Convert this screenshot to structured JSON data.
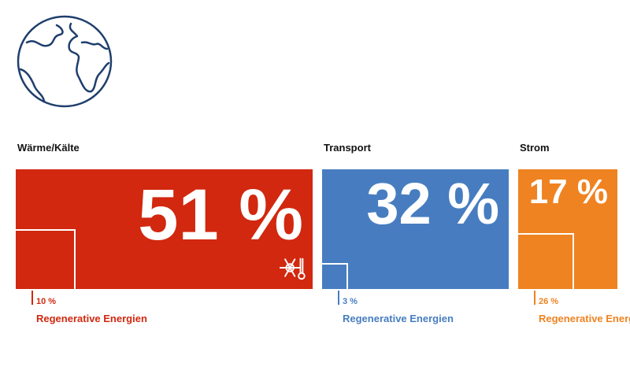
{
  "icons": {
    "globe": "globe-icon",
    "heat": "snowflake-thermometer-icon"
  },
  "chart_data": {
    "type": "bar",
    "categories": [
      "Wärme/Kälte",
      "Transport",
      "Strom"
    ],
    "series": [
      {
        "values": [
          51,
          32,
          17
        ],
        "labels": [
          "51 %",
          "32 %",
          "17 %"
        ]
      },
      {
        "name": "Regenerative Energien",
        "values": [
          10,
          3,
          26
        ],
        "labels": [
          "10 %",
          "3 %",
          "26 %"
        ]
      }
    ],
    "colors": [
      "#d1280f",
      "#477dc0",
      "#ef8321"
    ]
  }
}
